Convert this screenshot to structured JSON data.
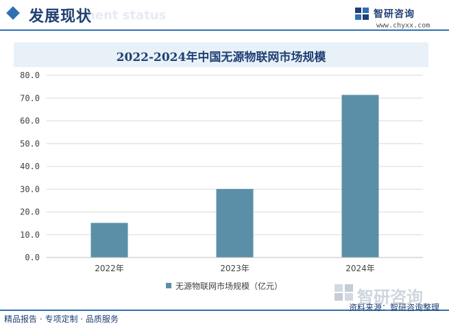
{
  "header": {
    "title": "发展现状",
    "ghost_text": "ment status"
  },
  "brand": {
    "name": "智研咨询",
    "url": "www.chyxx.com"
  },
  "watermark": {
    "text": "智研咨询"
  },
  "chart_data": {
    "type": "bar",
    "title": "2022-2024年中国无源物联网市场规模",
    "categories": [
      "2022年",
      "2023年",
      "2024年"
    ],
    "series": [
      {
        "name": "无源物联网市场规模（亿元）",
        "values": [
          15.2,
          30.1,
          71.4
        ]
      }
    ],
    "ylim": [
      0,
      80
    ],
    "yticks": [
      "0.0",
      "10.0",
      "20.0",
      "30.0",
      "40.0",
      "50.0",
      "60.0",
      "70.0",
      "80.0"
    ],
    "grid": true,
    "legend_position": "bottom",
    "bar_color": "#5b8fa8"
  },
  "footer": {
    "left": "精品报告 · 专项定制 · 品质服务",
    "source": "资料来源：智研咨询整理"
  }
}
